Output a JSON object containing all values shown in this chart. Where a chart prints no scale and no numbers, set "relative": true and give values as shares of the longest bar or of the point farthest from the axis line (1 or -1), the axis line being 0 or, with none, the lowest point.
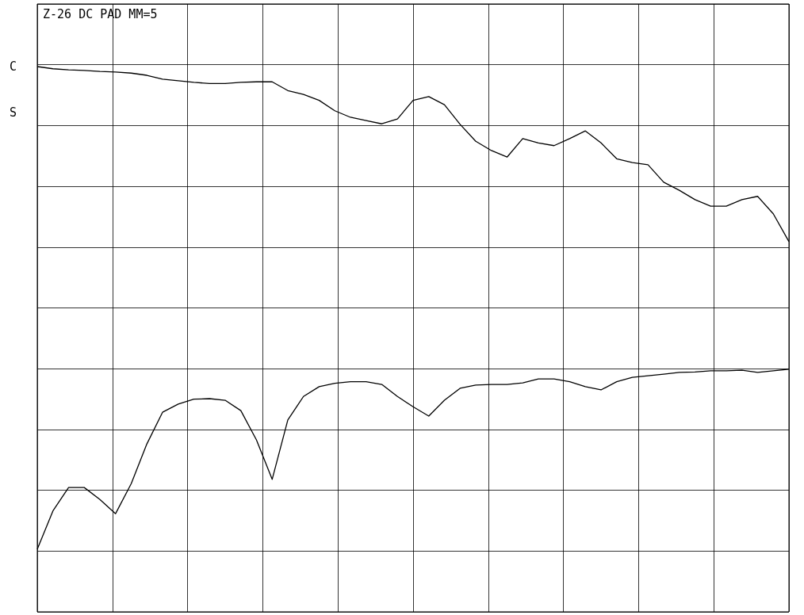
{
  "chart_data": {
    "type": "line",
    "title": "Z-26 DC PAD MM=5",
    "relative": true,
    "grid": true,
    "marker": "none",
    "line_style": "solid",
    "annotations": [
      "C",
      "S"
    ],
    "categories": [
      null,
      null,
      null,
      null,
      null,
      null,
      null,
      null,
      null,
      null,
      null,
      null,
      null,
      null,
      null,
      null,
      null,
      null,
      null,
      null,
      null,
      null,
      null,
      null,
      null,
      null,
      null,
      null,
      null,
      null,
      null,
      null,
      null,
      null,
      null,
      null,
      null,
      null,
      null,
      null,
      null,
      null,
      null,
      null,
      null,
      null,
      null,
      null,
      null
    ],
    "series": [
      {
        "color": "#000000",
        "values": [
          1.0,
          0.996,
          0.994,
          0.993,
          0.991,
          0.99,
          0.988,
          0.984,
          0.977,
          0.974,
          0.971,
          0.969,
          0.969,
          0.971,
          0.972,
          0.972,
          0.956,
          0.949,
          0.938,
          0.919,
          0.907,
          0.901,
          0.895,
          0.904,
          0.938,
          0.945,
          0.93,
          0.894,
          0.863,
          0.846,
          0.834,
          0.868,
          0.86,
          0.855,
          0.868,
          0.882,
          0.86,
          0.831,
          0.824,
          0.82,
          0.788,
          0.773,
          0.756,
          0.744,
          0.744,
          0.756,
          0.762,
          0.73,
          0.679
        ]
      },
      {
        "color": "#000000",
        "values": [
          0.115,
          0.185,
          0.228,
          0.228,
          0.206,
          0.18,
          0.235,
          0.308,
          0.366,
          0.381,
          0.39,
          0.391,
          0.388,
          0.369,
          0.315,
          0.243,
          0.352,
          0.395,
          0.413,
          0.419,
          0.422,
          0.422,
          0.417,
          0.395,
          0.376,
          0.359,
          0.388,
          0.41,
          0.416,
          0.417,
          0.417,
          0.42,
          0.427,
          0.427,
          0.422,
          0.413,
          0.407,
          0.422,
          0.43,
          0.433,
          0.436,
          0.439,
          0.44,
          0.442,
          0.442,
          0.443,
          0.439,
          0.442,
          0.445
        ]
      }
    ]
  }
}
